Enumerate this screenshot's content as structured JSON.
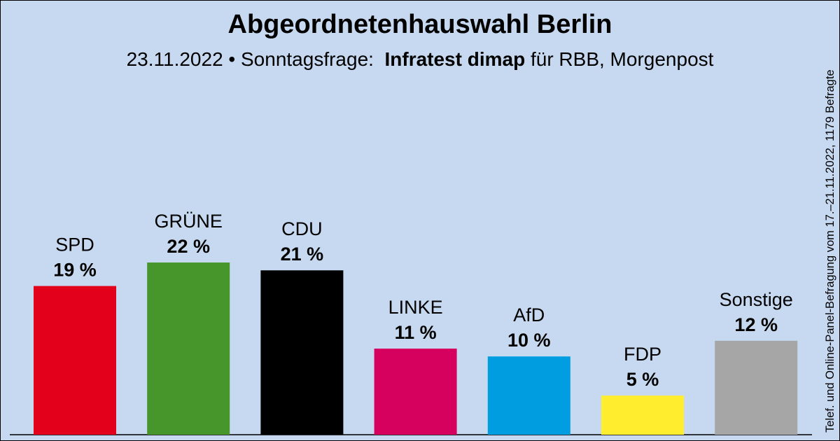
{
  "title": "Abgeordnetenhauswahl Berlin",
  "subtitle": {
    "prefix": "23.11.2022 • Sonntagsfrage:",
    "institute": "Infratest dimap",
    "suffix": "für RBB, Morgenpost"
  },
  "side_note": "Telef. und Online-Panel-Befragung vom 17.–21.11.2022, 1179 Befragte",
  "chart_data": {
    "type": "bar",
    "title": "Abgeordnetenhauswahl Berlin",
    "categories": [
      "SPD",
      "GRÜNE",
      "CDU",
      "LINKE",
      "AfD",
      "FDP",
      "Sonstige"
    ],
    "values": [
      19,
      22,
      21,
      11,
      10,
      5,
      12
    ],
    "value_labels": [
      "19 %",
      "22 %",
      "21 %",
      "11 %",
      "10 %",
      "5 %",
      "12 %"
    ],
    "colors": [
      "#e3001b",
      "#46962b",
      "#000000",
      "#d6005e",
      "#009ee0",
      "#ffed2e",
      "#a6a6a6"
    ],
    "xlabel": "",
    "ylabel": "",
    "ylim": [
      0,
      22
    ],
    "grid": false,
    "legend": "none"
  }
}
